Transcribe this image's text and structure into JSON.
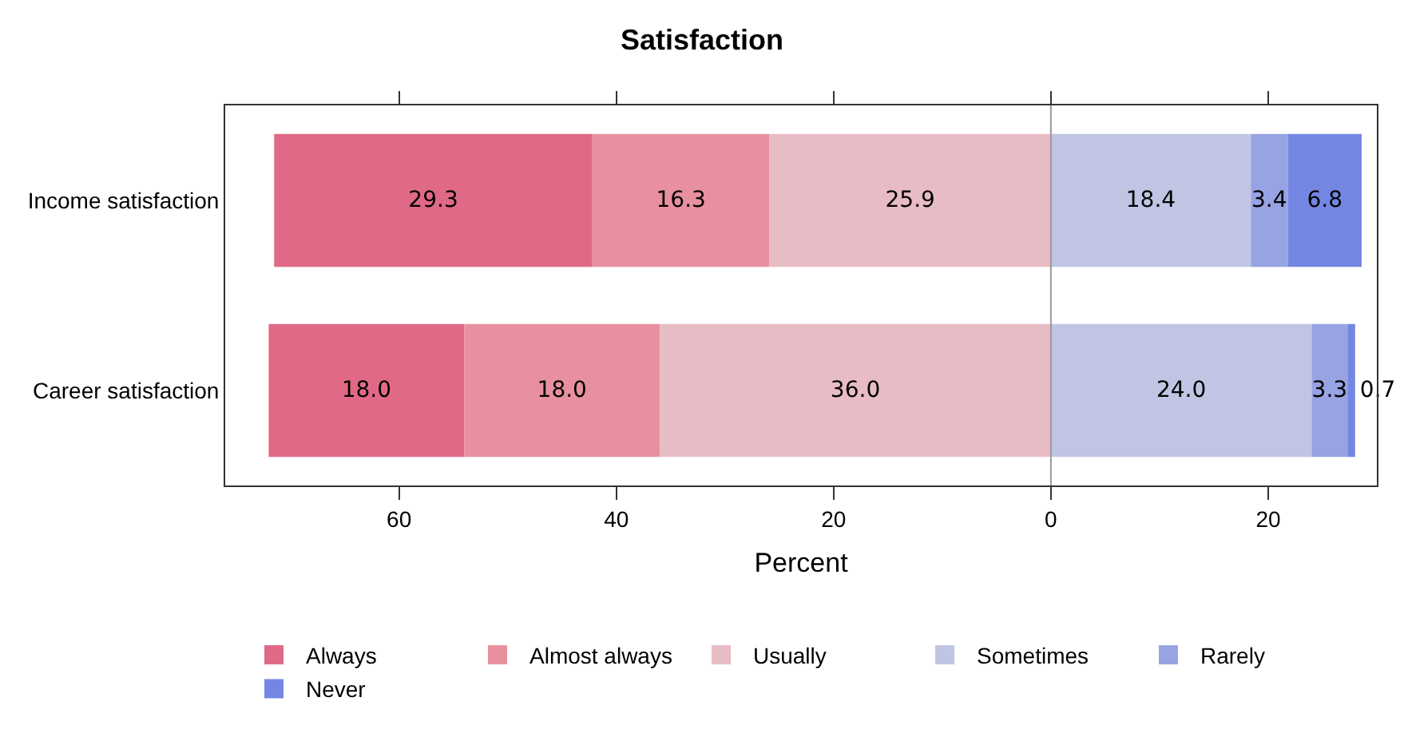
{
  "chart_data": {
    "type": "bar",
    "title": "Satisfaction",
    "xlabel": "Percent",
    "orientation": "horizontal",
    "categories": [
      "Income satisfaction",
      "Career satisfaction"
    ],
    "series": [
      {
        "name": "Always",
        "color": "#e06a85",
        "values": [
          29.3,
          18.0
        ],
        "value_labels": [
          "29.3",
          "18.0"
        ],
        "base": [
          -71.5,
          -72.0
        ]
      },
      {
        "name": "Almost always",
        "color": "#e8909f",
        "values": [
          16.3,
          18.0
        ],
        "value_labels": [
          "16.3",
          "18.0"
        ],
        "base": [
          -42.2,
          -54.0
        ]
      },
      {
        "name": "Usually",
        "color": "#e8bcc5",
        "values": [
          25.9,
          36.0
        ],
        "value_labels": [
          "25.9",
          "36.0"
        ],
        "base": [
          -25.9,
          -36.0
        ]
      },
      {
        "name": "Sometimes",
        "color": "#c0c5e4",
        "values": [
          18.4,
          24.0
        ],
        "value_labels": [
          "18.4",
          "24.0"
        ],
        "base": [
          0,
          0
        ]
      },
      {
        "name": "Rarely",
        "color": "#97a3e2",
        "values": [
          3.4,
          3.3
        ],
        "value_labels": [
          "3.4",
          "3.3"
        ],
        "base": [
          18.4,
          24.0
        ]
      },
      {
        "name": "Never",
        "color": "#7387e2",
        "values": [
          6.8,
          0.7
        ],
        "value_labels": [
          "6.8",
          "0.7"
        ],
        "base": [
          21.8,
          27.3
        ]
      }
    ],
    "xlim": [
      -76,
      30
    ],
    "xticks": [
      {
        "value": -60,
        "label": "60"
      },
      {
        "value": -40,
        "label": "40"
      },
      {
        "value": -20,
        "label": "20"
      },
      0,
      20
    ],
    "ref_lines": [
      {
        "axis": "x",
        "value": 0,
        "color": "#999999"
      }
    ],
    "grid": false,
    "legend": "bottom"
  }
}
